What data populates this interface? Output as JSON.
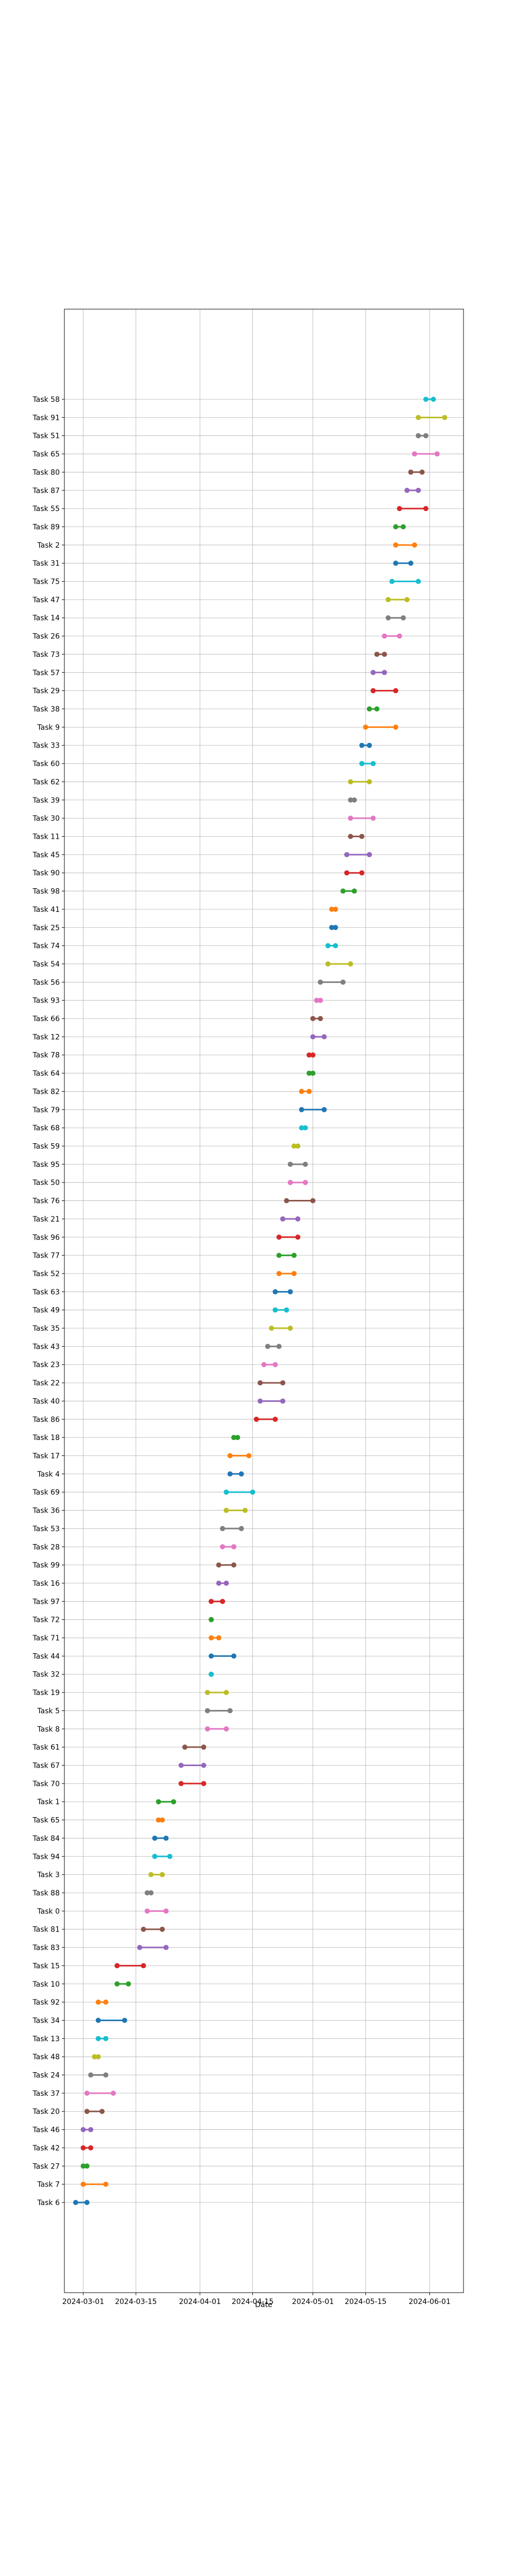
{
  "chart_data": {
    "type": "dumbbell",
    "xlabel": "Date",
    "ylabel": "",
    "x_tick_labels": [
      "2024-03-01",
      "2024-03-15",
      "2024-04-01",
      "2024-04-15",
      "2024-05-01",
      "2024-05-15",
      "2024-06-01"
    ],
    "x_range": [
      "2024-02-25",
      "2024-06-10"
    ],
    "grid": true,
    "tasks": [
      {
        "label": "Task 58",
        "start": "2024-05-31",
        "end": "2024-06-02",
        "color": "#17becf"
      },
      {
        "label": "Task 91",
        "start": "2024-05-29",
        "end": "2024-06-05",
        "color": "#bcbd22"
      },
      {
        "label": "Task 51",
        "start": "2024-05-29",
        "end": "2024-05-31",
        "color": "#7f7f7f"
      },
      {
        "label": "Task 65",
        "start": "2024-05-28",
        "end": "2024-06-03",
        "color": "#e377c2"
      },
      {
        "label": "Task 80",
        "start": "2024-05-27",
        "end": "2024-05-30",
        "color": "#8c564b"
      },
      {
        "label": "Task 87",
        "start": "2024-05-26",
        "end": "2024-05-29",
        "color": "#9467bd"
      },
      {
        "label": "Task 55",
        "start": "2024-05-24",
        "end": "2024-05-31",
        "color": "#d62728"
      },
      {
        "label": "Task 89",
        "start": "2024-05-23",
        "end": "2024-05-25",
        "color": "#2ca02c"
      },
      {
        "label": "Task 2",
        "start": "2024-05-23",
        "end": "2024-05-28",
        "color": "#ff7f0e"
      },
      {
        "label": "Task 31",
        "start": "2024-05-23",
        "end": "2024-05-27",
        "color": "#1f77b4"
      },
      {
        "label": "Task 75",
        "start": "2024-05-22",
        "end": "2024-05-29",
        "color": "#17becf"
      },
      {
        "label": "Task 47",
        "start": "2024-05-21",
        "end": "2024-05-26",
        "color": "#bcbd22"
      },
      {
        "label": "Task 14",
        "start": "2024-05-21",
        "end": "2024-05-25",
        "color": "#7f7f7f"
      },
      {
        "label": "Task 26",
        "start": "2024-05-20",
        "end": "2024-05-24",
        "color": "#e377c2"
      },
      {
        "label": "Task 73",
        "start": "2024-05-18",
        "end": "2024-05-20",
        "color": "#8c564b"
      },
      {
        "label": "Task 57",
        "start": "2024-05-17",
        "end": "2024-05-20",
        "color": "#9467bd"
      },
      {
        "label": "Task 29",
        "start": "2024-05-17",
        "end": "2024-05-23",
        "color": "#d62728"
      },
      {
        "label": "Task 38",
        "start": "2024-05-16",
        "end": "2024-05-18",
        "color": "#2ca02c"
      },
      {
        "label": "Task 9",
        "start": "2024-05-15",
        "end": "2024-05-23",
        "color": "#ff7f0e"
      },
      {
        "label": "Task 33",
        "start": "2024-05-14",
        "end": "2024-05-16",
        "color": "#1f77b4"
      },
      {
        "label": "Task 60",
        "start": "2024-05-14",
        "end": "2024-05-17",
        "color": "#17becf"
      },
      {
        "label": "Task 62",
        "start": "2024-05-11",
        "end": "2024-05-16",
        "color": "#bcbd22"
      },
      {
        "label": "Task 39",
        "start": "2024-05-11",
        "end": "2024-05-12",
        "color": "#7f7f7f"
      },
      {
        "label": "Task 30",
        "start": "2024-05-11",
        "end": "2024-05-17",
        "color": "#e377c2"
      },
      {
        "label": "Task 11",
        "start": "2024-05-11",
        "end": "2024-05-14",
        "color": "#8c564b"
      },
      {
        "label": "Task 45",
        "start": "2024-05-10",
        "end": "2024-05-16",
        "color": "#9467bd"
      },
      {
        "label": "Task 90",
        "start": "2024-05-10",
        "end": "2024-05-14",
        "color": "#d62728"
      },
      {
        "label": "Task 98",
        "start": "2024-05-09",
        "end": "2024-05-12",
        "color": "#2ca02c"
      },
      {
        "label": "Task 41",
        "start": "2024-05-06",
        "end": "2024-05-07",
        "color": "#ff7f0e"
      },
      {
        "label": "Task 25",
        "start": "2024-05-06",
        "end": "2024-05-07",
        "color": "#1f77b4"
      },
      {
        "label": "Task 74",
        "start": "2024-05-05",
        "end": "2024-05-07",
        "color": "#17becf"
      },
      {
        "label": "Task 54",
        "start": "2024-05-05",
        "end": "2024-05-11",
        "color": "#bcbd22"
      },
      {
        "label": "Task 56",
        "start": "2024-05-03",
        "end": "2024-05-09",
        "color": "#7f7f7f"
      },
      {
        "label": "Task 93",
        "start": "2024-05-02",
        "end": "2024-05-03",
        "color": "#e377c2"
      },
      {
        "label": "Task 66",
        "start": "2024-05-01",
        "end": "2024-05-03",
        "color": "#8c564b"
      },
      {
        "label": "Task 12",
        "start": "2024-05-01",
        "end": "2024-05-04",
        "color": "#9467bd"
      },
      {
        "label": "Task 78",
        "start": "2024-04-30",
        "end": "2024-05-01",
        "color": "#d62728"
      },
      {
        "label": "Task 64",
        "start": "2024-04-30",
        "end": "2024-05-01",
        "color": "#2ca02c"
      },
      {
        "label": "Task 82",
        "start": "2024-04-28",
        "end": "2024-04-30",
        "color": "#ff7f0e"
      },
      {
        "label": "Task 79",
        "start": "2024-04-28",
        "end": "2024-05-04",
        "color": "#1f77b4"
      },
      {
        "label": "Task 68",
        "start": "2024-04-28",
        "end": "2024-04-29",
        "color": "#17becf"
      },
      {
        "label": "Task 59",
        "start": "2024-04-26",
        "end": "2024-04-27",
        "color": "#bcbd22"
      },
      {
        "label": "Task 95",
        "start": "2024-04-25",
        "end": "2024-04-29",
        "color": "#7f7f7f"
      },
      {
        "label": "Task 50",
        "start": "2024-04-25",
        "end": "2024-04-29",
        "color": "#e377c2"
      },
      {
        "label": "Task 76",
        "start": "2024-04-24",
        "end": "2024-05-01",
        "color": "#8c564b"
      },
      {
        "label": "Task 21",
        "start": "2024-04-23",
        "end": "2024-04-27",
        "color": "#9467bd"
      },
      {
        "label": "Task 96",
        "start": "2024-04-22",
        "end": "2024-04-27",
        "color": "#d62728"
      },
      {
        "label": "Task 77",
        "start": "2024-04-22",
        "end": "2024-04-26",
        "color": "#2ca02c"
      },
      {
        "label": "Task 52",
        "start": "2024-04-22",
        "end": "2024-04-26",
        "color": "#ff7f0e"
      },
      {
        "label": "Task 63",
        "start": "2024-04-21",
        "end": "2024-04-25",
        "color": "#1f77b4"
      },
      {
        "label": "Task 49",
        "start": "2024-04-21",
        "end": "2024-04-24",
        "color": "#17becf"
      },
      {
        "label": "Task 35",
        "start": "2024-04-20",
        "end": "2024-04-25",
        "color": "#bcbd22"
      },
      {
        "label": "Task 43",
        "start": "2024-04-19",
        "end": "2024-04-22",
        "color": "#7f7f7f"
      },
      {
        "label": "Task 23",
        "start": "2024-04-18",
        "end": "2024-04-21",
        "color": "#e377c2"
      },
      {
        "label": "Task 22",
        "start": "2024-04-17",
        "end": "2024-04-23",
        "color": "#8c564b"
      },
      {
        "label": "Task 40",
        "start": "2024-04-17",
        "end": "2024-04-23",
        "color": "#9467bd"
      },
      {
        "label": "Task 86",
        "start": "2024-04-16",
        "end": "2024-04-21",
        "color": "#d62728"
      },
      {
        "label": "Task 18",
        "start": "2024-04-10",
        "end": "2024-04-11",
        "color": "#2ca02c"
      },
      {
        "label": "Task 17",
        "start": "2024-04-09",
        "end": "2024-04-14",
        "color": "#ff7f0e"
      },
      {
        "label": "Task 4",
        "start": "2024-04-09",
        "end": "2024-04-12",
        "color": "#1f77b4"
      },
      {
        "label": "Task 69",
        "start": "2024-04-08",
        "end": "2024-04-15",
        "color": "#17becf"
      },
      {
        "label": "Task 36",
        "start": "2024-04-08",
        "end": "2024-04-13",
        "color": "#bcbd22"
      },
      {
        "label": "Task 53",
        "start": "2024-04-07",
        "end": "2024-04-12",
        "color": "#7f7f7f"
      },
      {
        "label": "Task 28",
        "start": "2024-04-07",
        "end": "2024-04-10",
        "color": "#e377c2"
      },
      {
        "label": "Task 99",
        "start": "2024-04-06",
        "end": "2024-04-10",
        "color": "#8c564b"
      },
      {
        "label": "Task 16",
        "start": "2024-04-06",
        "end": "2024-04-08",
        "color": "#9467bd"
      },
      {
        "label": "Task 97",
        "start": "2024-04-04",
        "end": "2024-04-07",
        "color": "#d62728"
      },
      {
        "label": "Task 72",
        "start": "2024-04-04",
        "end": "2024-04-04",
        "color": "#2ca02c"
      },
      {
        "label": "Task 71",
        "start": "2024-04-04",
        "end": "2024-04-06",
        "color": "#ff7f0e"
      },
      {
        "label": "Task 44",
        "start": "2024-04-04",
        "end": "2024-04-10",
        "color": "#1f77b4"
      },
      {
        "label": "Task 32",
        "start": "2024-04-04",
        "end": "2024-04-04",
        "color": "#17becf"
      },
      {
        "label": "Task 19",
        "start": "2024-04-03",
        "end": "2024-04-08",
        "color": "#bcbd22"
      },
      {
        "label": "Task 5",
        "start": "2024-04-03",
        "end": "2024-04-09",
        "color": "#7f7f7f"
      },
      {
        "label": "Task 8",
        "start": "2024-04-03",
        "end": "2024-04-08",
        "color": "#e377c2"
      },
      {
        "label": "Task 61",
        "start": "2024-03-28",
        "end": "2024-04-02",
        "color": "#8c564b"
      },
      {
        "label": "Task 67",
        "start": "2024-03-27",
        "end": "2024-04-02",
        "color": "#9467bd"
      },
      {
        "label": "Task 70",
        "start": "2024-03-27",
        "end": "2024-04-02",
        "color": "#d62728"
      },
      {
        "label": "Task 1",
        "start": "2024-03-21",
        "end": "2024-03-25",
        "color": "#2ca02c"
      },
      {
        "label": "Task 65",
        "start": "2024-03-21",
        "end": "2024-03-22",
        "color": "#ff7f0e"
      },
      {
        "label": "Task 84",
        "start": "2024-03-20",
        "end": "2024-03-23",
        "color": "#1f77b4"
      },
      {
        "label": "Task 94",
        "start": "2024-03-20",
        "end": "2024-03-24",
        "color": "#17becf"
      },
      {
        "label": "Task 3",
        "start": "2024-03-19",
        "end": "2024-03-22",
        "color": "#bcbd22"
      },
      {
        "label": "Task 88",
        "start": "2024-03-18",
        "end": "2024-03-19",
        "color": "#7f7f7f"
      },
      {
        "label": "Task 0",
        "start": "2024-03-18",
        "end": "2024-03-23",
        "color": "#e377c2"
      },
      {
        "label": "Task 81",
        "start": "2024-03-17",
        "end": "2024-03-22",
        "color": "#8c564b"
      },
      {
        "label": "Task 83",
        "start": "2024-03-16",
        "end": "2024-03-23",
        "color": "#9467bd"
      },
      {
        "label": "Task 15",
        "start": "2024-03-10",
        "end": "2024-03-17",
        "color": "#d62728"
      },
      {
        "label": "Task 10",
        "start": "2024-03-10",
        "end": "2024-03-13",
        "color": "#2ca02c"
      },
      {
        "label": "Task 92",
        "start": "2024-03-05",
        "end": "2024-03-07",
        "color": "#ff7f0e"
      },
      {
        "label": "Task 34",
        "start": "2024-03-05",
        "end": "2024-03-12",
        "color": "#1f77b4"
      },
      {
        "label": "Task 13",
        "start": "2024-03-05",
        "end": "2024-03-07",
        "color": "#17becf"
      },
      {
        "label": "Task 48",
        "start": "2024-03-04",
        "end": "2024-03-05",
        "color": "#bcbd22"
      },
      {
        "label": "Task 24",
        "start": "2024-03-03",
        "end": "2024-03-07",
        "color": "#7f7f7f"
      },
      {
        "label": "Task 37",
        "start": "2024-03-02",
        "end": "2024-03-09",
        "color": "#e377c2"
      },
      {
        "label": "Task 20",
        "start": "2024-03-02",
        "end": "2024-03-06",
        "color": "#8c564b"
      },
      {
        "label": "Task 46",
        "start": "2024-03-01",
        "end": "2024-03-03",
        "color": "#9467bd"
      },
      {
        "label": "Task 42",
        "start": "2024-03-01",
        "end": "2024-03-03",
        "color": "#d62728"
      },
      {
        "label": "Task 27",
        "start": "2024-03-01",
        "end": "2024-03-02",
        "color": "#2ca02c"
      },
      {
        "label": "Task 7",
        "start": "2024-03-01",
        "end": "2024-03-07",
        "color": "#ff7f0e"
      },
      {
        "label": "Task 6",
        "start": "2024-02-28",
        "end": "2024-03-02",
        "color": "#1f77b4"
      }
    ]
  }
}
